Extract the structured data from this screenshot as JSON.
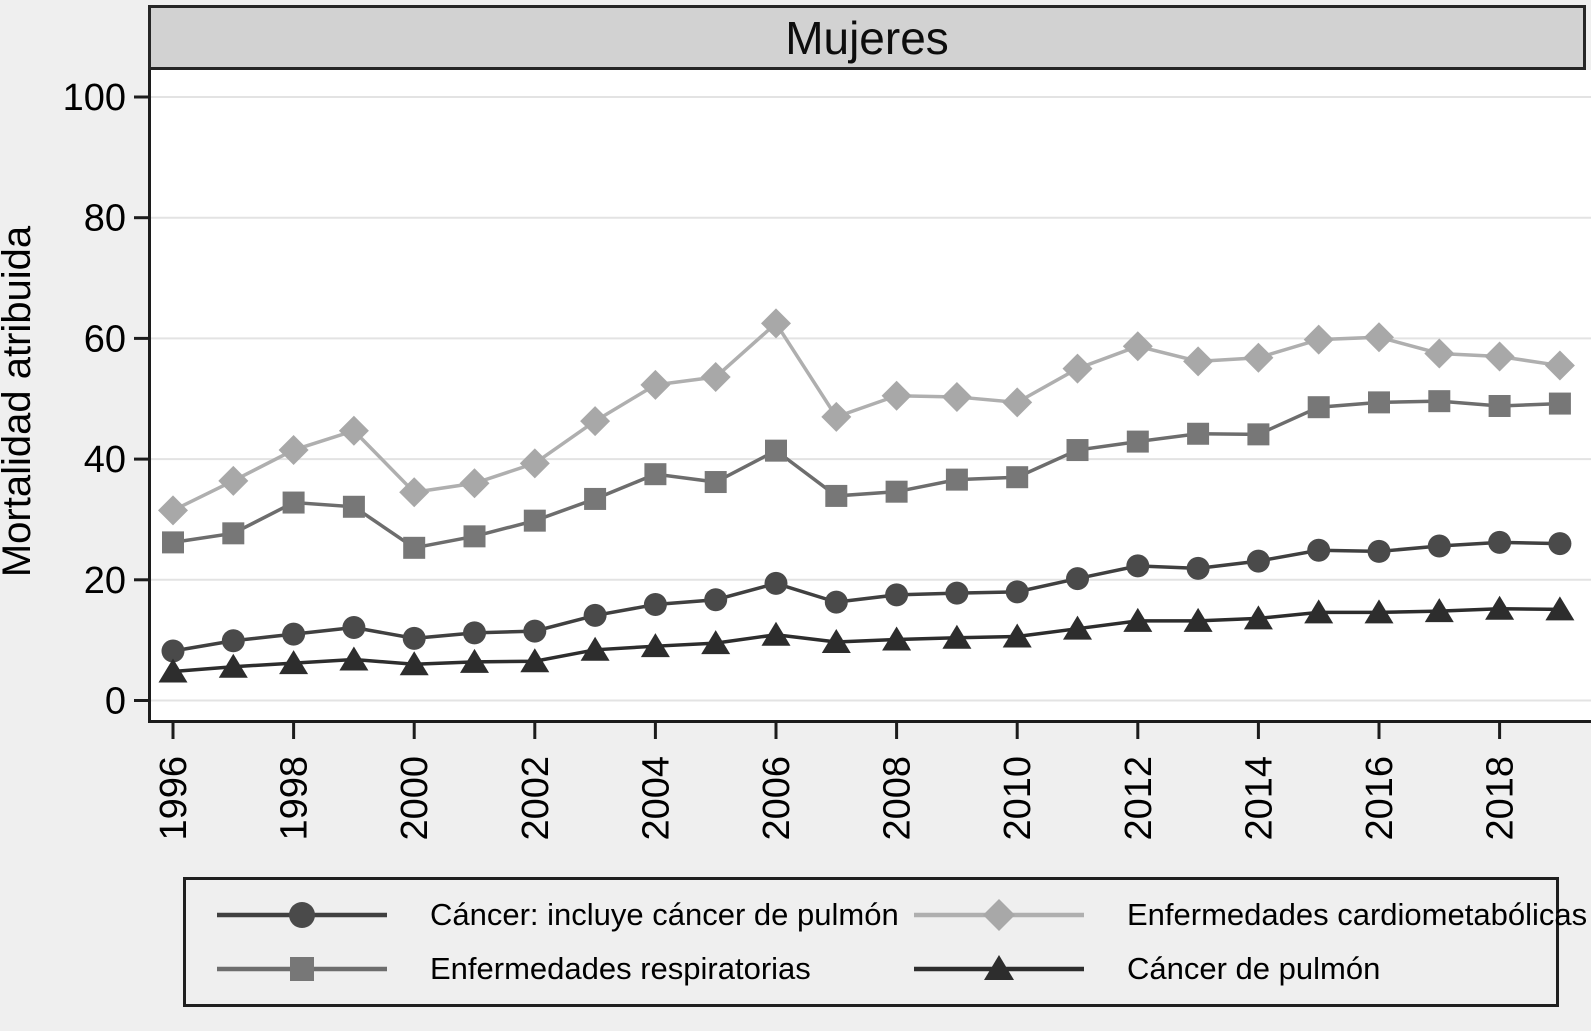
{
  "chart": {
    "title": "Mujeres",
    "y_axis_title": "Mortalidad atribuida"
  },
  "chart_data": {
    "type": "line",
    "title": "Mujeres",
    "xlabel": "",
    "ylabel": "Mortalidad atribuida",
    "x": [
      1996,
      1997,
      1998,
      1999,
      2000,
      2001,
      2002,
      2003,
      2004,
      2005,
      2006,
      2007,
      2008,
      2009,
      2010,
      2011,
      2012,
      2013,
      2014,
      2015,
      2016,
      2017,
      2018,
      2019
    ],
    "x_tick_labels": [
      "1996",
      "1998",
      "2000",
      "2002",
      "2004",
      "2006",
      "2008",
      "2010",
      "2012",
      "2014",
      "2016",
      "2018"
    ],
    "x_tick_years": [
      1996,
      1998,
      2000,
      2002,
      2004,
      2006,
      2008,
      2010,
      2012,
      2014,
      2016,
      2018
    ],
    "y_ticks": [
      0,
      20,
      40,
      60,
      80,
      100
    ],
    "y_tick_labels": [
      "0",
      "20",
      "40",
      "60",
      "80",
      "100"
    ],
    "ylim": [
      0,
      100
    ],
    "grid": "horizontal",
    "legend_position": "bottom",
    "series": [
      {
        "name": "Enfermedades cardiometabólicas",
        "marker": "diamond",
        "color": "#a8a8a8",
        "line_color": "#afafaf",
        "values": [
          31.5,
          36.4,
          41.5,
          44.7,
          34.5,
          36.0,
          39.3,
          46.3,
          52.3,
          53.6,
          62.5,
          47.0,
          50.5,
          50.3,
          49.4,
          55.0,
          58.7,
          56.2,
          56.8,
          59.8,
          60.2,
          57.5,
          57.0,
          55.5
        ]
      },
      {
        "name": "Enfermedades respiratorias",
        "marker": "square",
        "color": "#777777",
        "line_color": "#6d6d6d",
        "values": [
          26.2,
          27.7,
          32.8,
          32.1,
          25.3,
          27.2,
          29.8,
          33.4,
          37.5,
          36.2,
          41.4,
          33.9,
          34.6,
          36.6,
          37.0,
          41.5,
          42.9,
          44.2,
          44.1,
          48.6,
          49.4,
          49.6,
          48.8,
          49.2
        ]
      },
      {
        "name": "Cáncer: incluye cáncer de pulmón",
        "marker": "circle",
        "color": "#4a4a4a",
        "line_color": "#404040",
        "values": [
          8.2,
          9.9,
          11.0,
          12.1,
          10.3,
          11.2,
          11.5,
          14.1,
          15.9,
          16.7,
          19.4,
          16.3,
          17.5,
          17.8,
          18.0,
          20.2,
          22.3,
          21.9,
          23.1,
          24.9,
          24.7,
          25.6,
          26.2,
          26.0
        ]
      },
      {
        "name": "Cáncer de pulmón",
        "marker": "triangle",
        "color": "#2d2d2d",
        "line_color": "#2d2d2d",
        "values": [
          4.8,
          5.6,
          6.2,
          6.8,
          6.0,
          6.4,
          6.5,
          8.4,
          9.0,
          9.5,
          10.9,
          9.7,
          10.1,
          10.4,
          10.6,
          11.9,
          13.2,
          13.2,
          13.6,
          14.6,
          14.6,
          14.8,
          15.2,
          15.1
        ]
      }
    ],
    "colors": {
      "plot_background": "#ffffff",
      "outer_background": "#efefef",
      "title_band": "#d2d2d2",
      "gridline": "#e3e3e3",
      "axis": "#1c1c1c"
    }
  }
}
